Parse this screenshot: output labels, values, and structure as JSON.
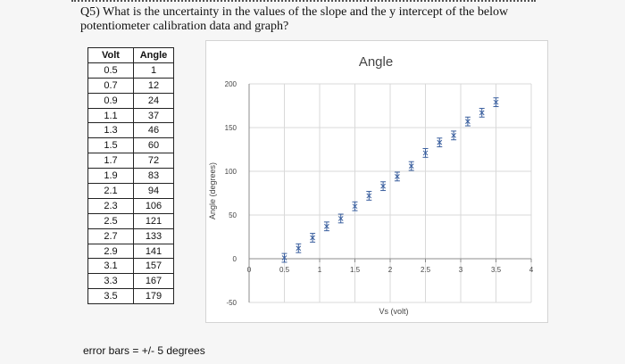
{
  "question": "Q5) What is the uncertainty in the values of the slope and the y intercept of the below potentiometer calibration data and graph?",
  "table": {
    "headers": [
      "Volt",
      "Angle"
    ],
    "rows": [
      [
        "0.5",
        "1"
      ],
      [
        "0.7",
        "12"
      ],
      [
        "0.9",
        "24"
      ],
      [
        "1.1",
        "37"
      ],
      [
        "1.3",
        "46"
      ],
      [
        "1.5",
        "60"
      ],
      [
        "1.7",
        "72"
      ],
      [
        "1.9",
        "83"
      ],
      [
        "2.1",
        "94"
      ],
      [
        "2.3",
        "106"
      ],
      [
        "2.5",
        "121"
      ],
      [
        "2.7",
        "133"
      ],
      [
        "2.9",
        "141"
      ],
      [
        "3.1",
        "157"
      ],
      [
        "3.3",
        "167"
      ],
      [
        "3.5",
        "179"
      ]
    ]
  },
  "chart_data": {
    "type": "scatter",
    "title": "Angle",
    "xlabel": "Vs (volt)",
    "ylabel": "Angle (degrees)",
    "xlim": [
      0,
      4
    ],
    "ylim": [
      -50,
      200
    ],
    "x_ticks": [
      "0",
      "0.5",
      "1",
      "1.5",
      "2",
      "2.5",
      "3",
      "3.5",
      "4"
    ],
    "y_ticks": [
      "200",
      "150",
      "100",
      "50",
      "0",
      "-50"
    ],
    "grid": true,
    "error_bar": 5,
    "marker_color": "#3a5f9e",
    "x": [
      0.5,
      0.7,
      0.9,
      1.1,
      1.3,
      1.5,
      1.7,
      1.9,
      2.1,
      2.3,
      2.5,
      2.7,
      2.9,
      3.1,
      3.3,
      3.5
    ],
    "y": [
      1,
      12,
      24,
      37,
      46,
      60,
      72,
      83,
      94,
      106,
      121,
      133,
      141,
      157,
      167,
      179
    ]
  },
  "footnote": "error bars = +/- 5 degrees"
}
